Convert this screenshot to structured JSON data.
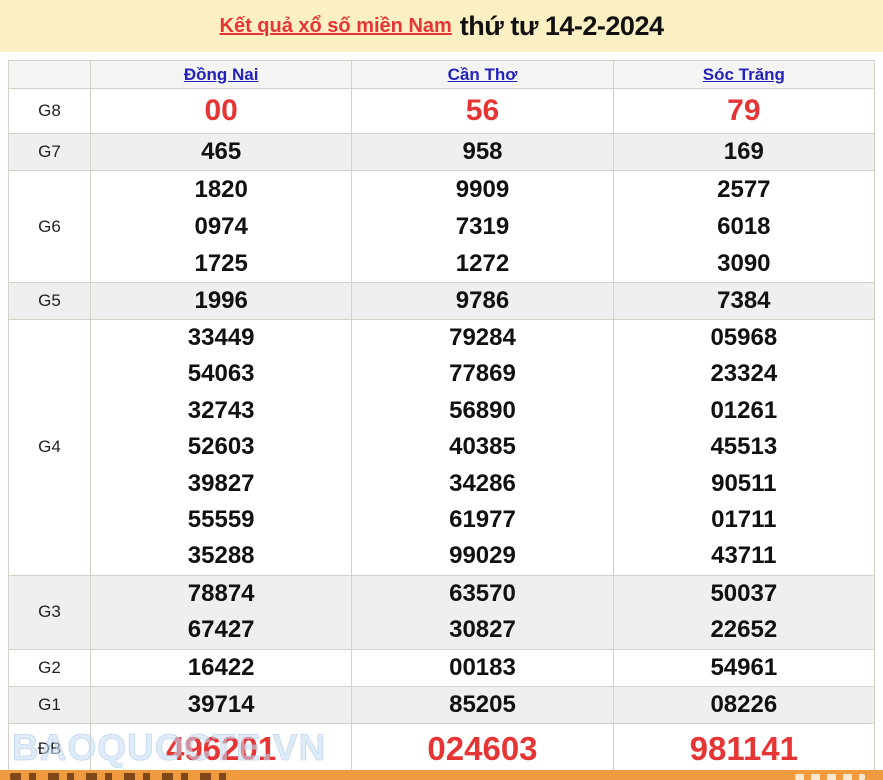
{
  "header": {
    "title_link": "Kết quả xổ số miền Nam",
    "title_date": "thứ tư 14-2-2024"
  },
  "table": {
    "provinces": [
      "Đồng Nai",
      "Cần Thơ",
      "Sóc Trăng"
    ],
    "rows": [
      {
        "label": "G8",
        "key": "g8",
        "highlight": true,
        "values": [
          [
            "00"
          ],
          [
            "56"
          ],
          [
            "79"
          ]
        ]
      },
      {
        "label": "G7",
        "key": "g7",
        "highlight": false,
        "values": [
          [
            "465"
          ],
          [
            "958"
          ],
          [
            "169"
          ]
        ]
      },
      {
        "label": "G6",
        "key": "g6",
        "highlight": false,
        "values": [
          [
            "1820",
            "0974",
            "1725"
          ],
          [
            "9909",
            "7319",
            "1272"
          ],
          [
            "2577",
            "6018",
            "3090"
          ]
        ]
      },
      {
        "label": "G5",
        "key": "g5",
        "highlight": false,
        "values": [
          [
            "1996"
          ],
          [
            "9786"
          ],
          [
            "7384"
          ]
        ]
      },
      {
        "label": "G4",
        "key": "g4",
        "highlight": false,
        "values": [
          [
            "33449",
            "54063",
            "32743",
            "52603",
            "39827",
            "55559",
            "35288"
          ],
          [
            "79284",
            "77869",
            "56890",
            "40385",
            "34286",
            "61977",
            "99029"
          ],
          [
            "05968",
            "23324",
            "01261",
            "45513",
            "90511",
            "01711",
            "43711"
          ]
        ]
      },
      {
        "label": "G3",
        "key": "g3",
        "highlight": false,
        "values": [
          [
            "78874",
            "67427"
          ],
          [
            "63570",
            "30827"
          ],
          [
            "50037",
            "22652"
          ]
        ]
      },
      {
        "label": "G2",
        "key": "g2",
        "highlight": false,
        "values": [
          [
            "16422"
          ],
          [
            "00183"
          ],
          [
            "54961"
          ]
        ]
      },
      {
        "label": "G1",
        "key": "g1",
        "highlight": false,
        "values": [
          [
            "39714"
          ],
          [
            "85205"
          ],
          [
            "08226"
          ]
        ]
      },
      {
        "label": "ĐB",
        "key": "db",
        "highlight": true,
        "values": [
          [
            "496201"
          ],
          [
            "024603"
          ],
          [
            "981141"
          ]
        ]
      }
    ]
  },
  "watermark": "BAOQUOCTE.VN",
  "colors": {
    "title_bar_bg": "#faf0c3",
    "highlight_red": "#e53535",
    "link_blue": "#2323bb",
    "row_alt_bg": "#efefef",
    "table_border": "#d5d1c6",
    "footer_orange": "#f09a40"
  }
}
